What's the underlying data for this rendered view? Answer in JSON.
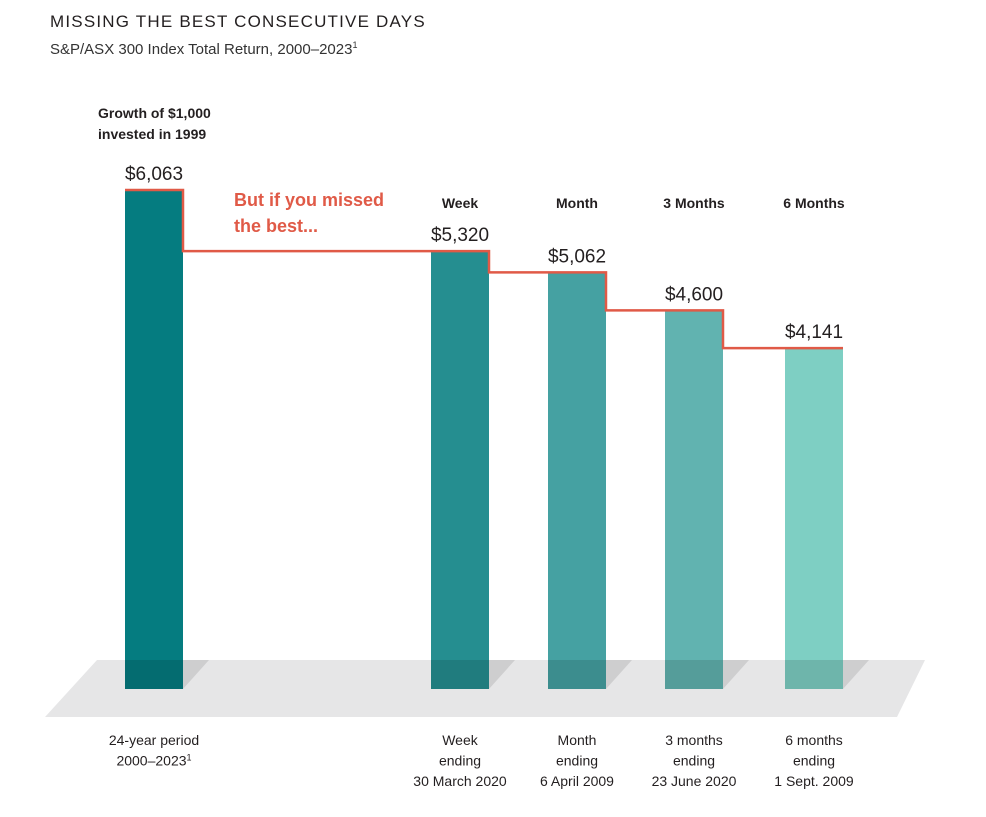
{
  "header": {
    "title": "MISSING THE BEST CONSECUTIVE DAYS",
    "subtitle": "S&P/ASX 300 Index Total Return, 2000–2023",
    "subtitle_footnote": "1"
  },
  "chart_data": {
    "type": "bar",
    "title": "MISSING THE BEST CONSECUTIVE DAYS",
    "subtitle": "S&P/ASX 300 Index Total Return, 2000–2023",
    "categories": [
      "Growth of $1,000 invested in 1999",
      "Week",
      "Month",
      "3 Months",
      "6 Months"
    ],
    "values": [
      6063,
      5320,
      5062,
      4600,
      4141
    ],
    "value_labels": [
      "$6,063",
      "$5,320",
      "$5,062",
      "$4,600",
      "$4,141"
    ],
    "top_labels": [
      "Growth of $1,000",
      "invested in 1999",
      "Week",
      "Month",
      "3 Months",
      "6 Months"
    ],
    "x_labels": [
      [
        "24-year period",
        "2000–2023"
      ],
      [
        "Week",
        "ending",
        "30 March 2020"
      ],
      [
        "Month",
        "ending",
        "6 April 2009"
      ],
      [
        "3 months",
        "ending",
        "23 June 2020"
      ],
      [
        "6 months",
        "ending",
        "1 Sept. 2009"
      ]
    ],
    "x_label_footnote": "1",
    "annotation": [
      "But if you missed",
      "the best..."
    ],
    "colors": [
      "#057c80",
      "#258e90",
      "#45a1a2",
      "#61b3b0",
      "#7ecfc3"
    ],
    "step_line_color": "#e05a47",
    "ylim": [
      0,
      6500
    ],
    "grid": false,
    "legend": "none"
  }
}
